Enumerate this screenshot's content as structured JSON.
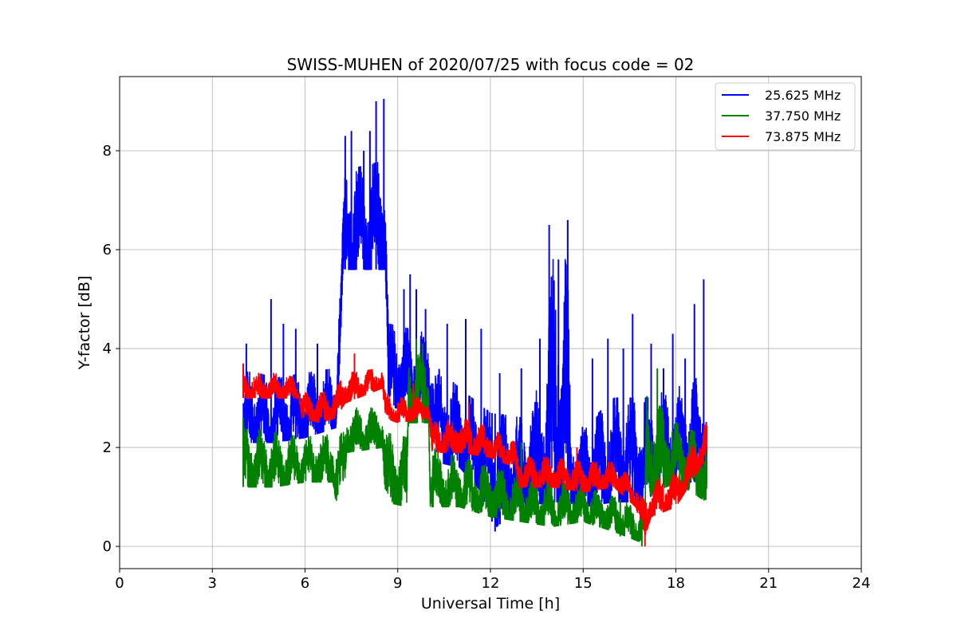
{
  "chart_data": {
    "type": "line",
    "title": "SWISS-MUHEN of 2020/07/25 with focus code = 02",
    "xlabel": "Universal Time [h]",
    "ylabel": "Y-factor [dB]",
    "xlim": [
      0,
      24
    ],
    "ylim": [
      -0.45,
      9.5
    ],
    "xticks": [
      0,
      3,
      6,
      9,
      12,
      15,
      18,
      21,
      24
    ],
    "yticks": [
      0,
      2,
      4,
      6,
      8
    ],
    "grid": true,
    "legend_position": "top-right",
    "series": [
      {
        "name": "25.625 MHz",
        "color": "#0000ff",
        "low": [
          [
            4.0,
            2.1
          ],
          [
            5.0,
            2.1
          ],
          [
            6.0,
            2.2
          ],
          [
            7.0,
            2.4
          ],
          [
            7.3,
            5.6
          ],
          [
            8.6,
            5.6
          ],
          [
            8.7,
            2.8
          ],
          [
            10.0,
            2.8
          ],
          [
            10.3,
            1.7
          ],
          [
            11.0,
            1.6
          ],
          [
            12.0,
            0.9
          ],
          [
            12.2,
            0.4
          ],
          [
            13.0,
            0.8
          ],
          [
            14.0,
            0.9
          ],
          [
            14.5,
            0.9
          ],
          [
            15.0,
            0.8
          ],
          [
            16.0,
            0.9
          ],
          [
            17.0,
            0.9
          ],
          [
            17.5,
            1.2
          ],
          [
            18.0,
            1.3
          ],
          [
            19.0,
            1.3
          ]
        ],
        "high": [
          [
            4.0,
            3.6
          ],
          [
            5.0,
            3.4
          ],
          [
            6.0,
            3.5
          ],
          [
            7.0,
            3.6
          ],
          [
            7.3,
            7.6
          ],
          [
            8.6,
            7.8
          ],
          [
            8.7,
            4.5
          ],
          [
            10.0,
            4.3
          ],
          [
            10.3,
            3.6
          ],
          [
            11.0,
            3.2
          ],
          [
            12.0,
            2.7
          ],
          [
            13.0,
            2.6
          ],
          [
            13.8,
            3.5
          ],
          [
            14.0,
            5.8
          ],
          [
            14.5,
            5.8
          ],
          [
            14.6,
            2.5
          ],
          [
            15.0,
            2.4
          ],
          [
            16.0,
            3.0
          ],
          [
            17.0,
            3.0
          ],
          [
            17.5,
            3.1
          ],
          [
            18.0,
            3.2
          ],
          [
            19.0,
            3.5
          ]
        ],
        "peaks": [
          [
            4.1,
            4.1
          ],
          [
            4.9,
            5.0
          ],
          [
            5.3,
            4.5
          ],
          [
            5.7,
            4.4
          ],
          [
            6.4,
            4.1
          ],
          [
            7.1,
            4.6
          ],
          [
            7.3,
            8.3
          ],
          [
            7.5,
            8.4
          ],
          [
            7.9,
            8.0
          ],
          [
            8.1,
            8.4
          ],
          [
            8.3,
            9.0
          ],
          [
            8.55,
            9.05
          ],
          [
            9.2,
            5.2
          ],
          [
            9.4,
            5.5
          ],
          [
            9.6,
            5.2
          ],
          [
            9.9,
            4.8
          ],
          [
            10.6,
            4.5
          ],
          [
            11.2,
            4.6
          ],
          [
            11.7,
            4.4
          ],
          [
            12.3,
            3.5
          ],
          [
            13.0,
            3.6
          ],
          [
            13.6,
            4.2
          ],
          [
            13.9,
            6.5
          ],
          [
            14.2,
            5.8
          ],
          [
            14.5,
            6.6
          ],
          [
            15.3,
            3.8
          ],
          [
            15.8,
            4.2
          ],
          [
            16.3,
            4.0
          ],
          [
            16.6,
            4.7
          ],
          [
            17.2,
            4.1
          ],
          [
            17.6,
            3.6
          ],
          [
            17.9,
            4.3
          ],
          [
            18.3,
            3.8
          ],
          [
            18.6,
            4.9
          ],
          [
            18.9,
            5.4
          ]
        ],
        "dips": [
          [
            12.15,
            0.3
          ],
          [
            12.05,
            0.5
          ],
          [
            11.8,
            0.9
          ]
        ]
      },
      {
        "name": "37.750 MHz",
        "color": "#008000",
        "low": [
          [
            4.0,
            1.2
          ],
          [
            5.0,
            1.2
          ],
          [
            6.0,
            1.3
          ],
          [
            6.9,
            1.3
          ],
          [
            7.0,
            0.9
          ],
          [
            7.3,
            1.4
          ],
          [
            7.35,
            1.9
          ],
          [
            8.5,
            2.0
          ],
          [
            8.6,
            0.9
          ],
          [
            9.3,
            0.8
          ],
          [
            9.35,
            2.5
          ],
          [
            10.0,
            2.5
          ],
          [
            10.05,
            0.8
          ],
          [
            11.0,
            0.8
          ],
          [
            12.0,
            0.6
          ],
          [
            13.0,
            0.5
          ],
          [
            14.0,
            0.4
          ],
          [
            15.0,
            0.5
          ],
          [
            16.0,
            0.3
          ],
          [
            16.8,
            0.1
          ],
          [
            17.0,
            0.2
          ],
          [
            17.05,
            1.0
          ],
          [
            18.0,
            1.3
          ],
          [
            19.0,
            0.9
          ]
        ],
        "high": [
          [
            4.0,
            2.4
          ],
          [
            5.0,
            2.3
          ],
          [
            6.0,
            2.2
          ],
          [
            6.9,
            2.3
          ],
          [
            7.0,
            2.0
          ],
          [
            7.3,
            2.5
          ],
          [
            7.35,
            2.8
          ],
          [
            8.5,
            2.8
          ],
          [
            8.6,
            2.3
          ],
          [
            9.3,
            2.2
          ],
          [
            9.35,
            3.9
          ],
          [
            10.0,
            3.9
          ],
          [
            10.05,
            2.0
          ],
          [
            11.0,
            1.8
          ],
          [
            12.0,
            1.6
          ],
          [
            13.0,
            1.4
          ],
          [
            14.0,
            1.3
          ],
          [
            15.0,
            1.2
          ],
          [
            16.0,
            1.0
          ],
          [
            16.8,
            0.8
          ],
          [
            17.0,
            1.0
          ],
          [
            17.05,
            3.1
          ],
          [
            18.0,
            2.5
          ],
          [
            19.0,
            2.2
          ]
        ],
        "peaks": [
          [
            4.0,
            2.6
          ],
          [
            9.6,
            4.2
          ],
          [
            9.8,
            4.1
          ],
          [
            17.4,
            3.6
          ],
          [
            13.0,
            2.1
          ]
        ],
        "dips": [
          [
            16.9,
            0.0
          ],
          [
            16.2,
            0.2
          ]
        ]
      },
      {
        "name": "73.875 MHz",
        "color": "#ff0000",
        "low": [
          [
            4.0,
            3.0
          ],
          [
            5.0,
            3.0
          ],
          [
            5.8,
            3.0
          ],
          [
            5.9,
            2.6
          ],
          [
            6.5,
            2.5
          ],
          [
            7.0,
            2.6
          ],
          [
            7.3,
            2.9
          ],
          [
            8.5,
            3.2
          ],
          [
            8.6,
            2.6
          ],
          [
            9.0,
            2.5
          ],
          [
            10.0,
            2.6
          ],
          [
            10.1,
            1.9
          ],
          [
            11.0,
            1.9
          ],
          [
            12.0,
            1.8
          ],
          [
            12.8,
            1.6
          ],
          [
            12.9,
            1.2
          ],
          [
            14.0,
            1.2
          ],
          [
            15.0,
            1.1
          ],
          [
            16.0,
            1.2
          ],
          [
            16.7,
            0.8
          ],
          [
            17.0,
            0.2
          ],
          [
            17.2,
            0.6
          ],
          [
            18.0,
            0.8
          ],
          [
            19.0,
            1.8
          ]
        ],
        "high": [
          [
            4.0,
            3.5
          ],
          [
            5.0,
            3.5
          ],
          [
            5.8,
            3.4
          ],
          [
            5.9,
            3.1
          ],
          [
            6.5,
            3.1
          ],
          [
            7.0,
            3.2
          ],
          [
            7.3,
            3.5
          ],
          [
            8.5,
            3.6
          ],
          [
            8.6,
            3.1
          ],
          [
            9.0,
            3.0
          ],
          [
            10.0,
            3.0
          ],
          [
            10.1,
            2.5
          ],
          [
            11.0,
            2.6
          ],
          [
            12.0,
            2.4
          ],
          [
            12.8,
            2.1
          ],
          [
            12.9,
            1.8
          ],
          [
            14.0,
            1.8
          ],
          [
            15.0,
            1.7
          ],
          [
            16.0,
            1.7
          ],
          [
            16.7,
            1.3
          ],
          [
            17.0,
            0.9
          ],
          [
            17.2,
            1.3
          ],
          [
            18.0,
            1.5
          ],
          [
            19.0,
            2.5
          ]
        ],
        "peaks": [
          [
            4.0,
            3.7
          ],
          [
            7.6,
            3.9
          ],
          [
            9.5,
            3.3
          ],
          [
            11.3,
            2.9
          ],
          [
            14.8,
            2.0
          ]
        ],
        "dips": [
          [
            17.0,
            0.0
          ]
        ]
      }
    ]
  }
}
